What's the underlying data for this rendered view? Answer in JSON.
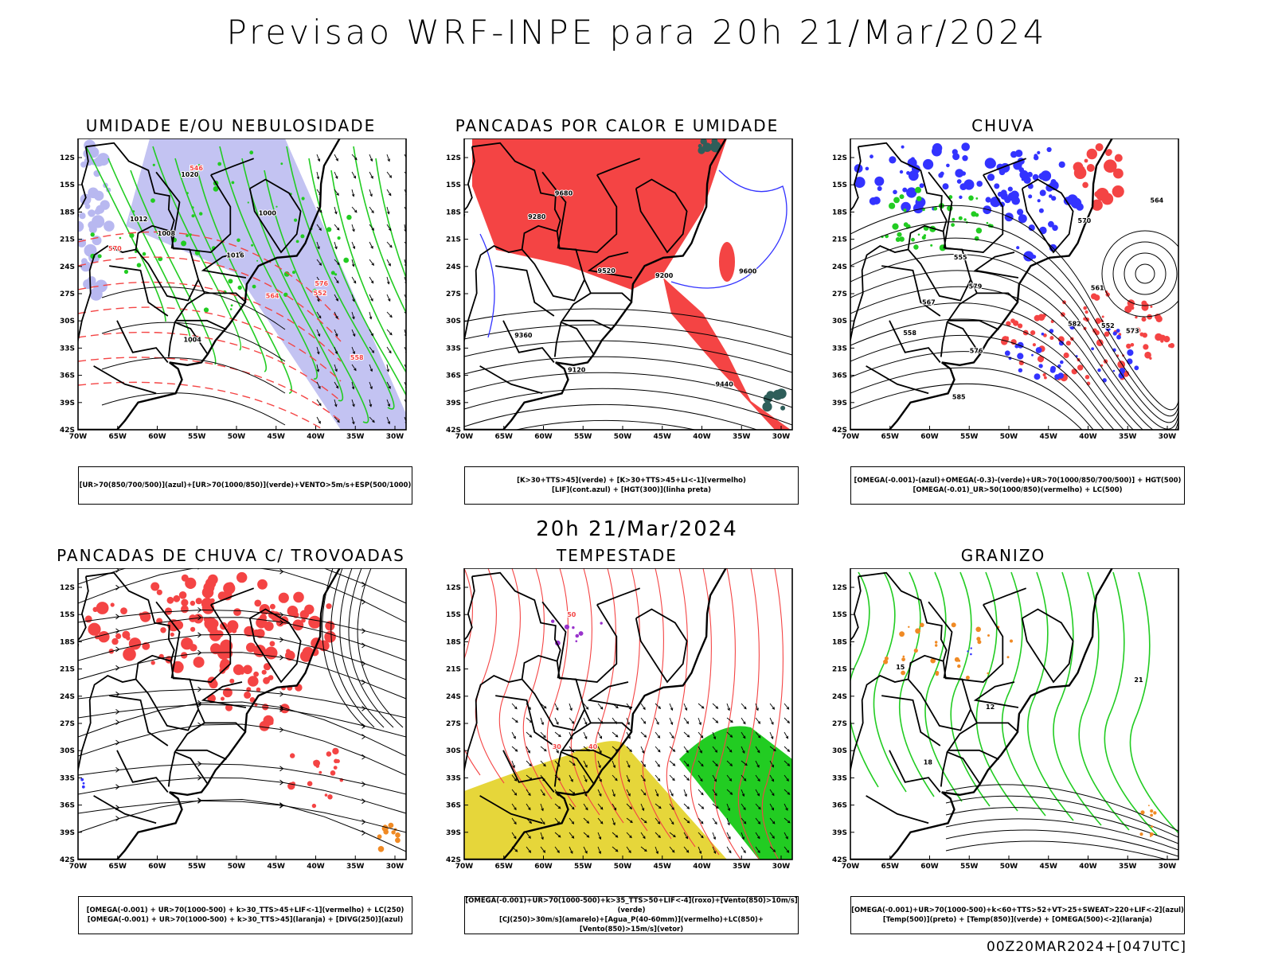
{
  "main_title": "Previsao WRF-INPE  para 20h 21/Mar/2024",
  "mid_title": "20h 21/Mar/2024",
  "footer": "00Z20MAR2024+[047UTC]",
  "lat_labels": [
    "12S",
    "15S",
    "18S",
    "21S",
    "24S",
    "27S",
    "30S",
    "33S",
    "36S",
    "39S",
    "42S"
  ],
  "lon_labels": [
    "70W",
    "65W",
    "60W",
    "55W",
    "50W",
    "45W",
    "40W",
    "35W",
    "30W"
  ],
  "colors": {
    "blue": "#3333ff",
    "lavender": "#b8b8f0",
    "green": "#22cc22",
    "red": "#f44444",
    "yellow": "#e6d63a",
    "orange": "#f08a24",
    "darkteal": "#2e5e5a",
    "purple": "#9933cc"
  },
  "panels": [
    {
      "title": "UMIDADE E/OU NEBULOSIDADE",
      "legend": [
        "[UR>70(850/700/500)](azul)+[UR>70(1000/850)](verde)+VENTO>5m/s+ESP(500/1000)"
      ],
      "contour_labels": [
        "1008",
        "1012",
        "1016",
        "1020",
        "1004",
        "1000",
        "570",
        "564",
        "558",
        "552",
        "546",
        "576"
      ]
    },
    {
      "title": "PANCADAS POR CALOR E UMIDADE",
      "legend": [
        "[K>30+TTS>45](verde) + [K>30+TTS>45+LI<-1](vermelho)",
        "[LIF](cont.azul) + [HGT(300)](linha preta)"
      ],
      "contour_labels": [
        "9680",
        "9600",
        "9520",
        "9440",
        "9360",
        "9280",
        "9200",
        "9120"
      ]
    },
    {
      "title": "CHUVA",
      "legend": [
        "[OMEGA(-0.001)-(azul)+OMEGA(-0.3)-(verde)+UR>70(1000/850/700/500)] + HGT(500)",
        "[OMEGA(-0.01)_UR>50(1000/850)(vermelho) + LC(500)"
      ],
      "contour_labels": [
        "585",
        "582",
        "579",
        "576",
        "573",
        "570",
        "567",
        "564",
        "561",
        "558",
        "555",
        "552"
      ]
    },
    {
      "title": "PANCADAS DE CHUVA C/ TROVOADAS",
      "legend": [
        "[OMEGA(-0.001) + UR>70(1000-500) + k>30_TTS>45+LIF<-1](vermelho) + LC(250)",
        "[OMEGA(-0.001) + UR>70(1000-500) + k>30_TTS>45](laranja) + [DIVG(250)](azul)"
      ],
      "contour_labels": []
    },
    {
      "title": "TEMPESTADE",
      "legend": [
        "[OMEGA(-0.001)+UR>70(1000-500)+k>35_TTS>50+LIF<-4](roxo)+[Vento(850)>10m/s](verde)",
        "[CJ(250)>30m/s](amarelo)+[Agua_P(40-60mm)](vermelho)+LC(850)+[Vento(850)>15m/s](vetor)"
      ],
      "contour_labels": [
        "40",
        "50",
        "30"
      ]
    },
    {
      "title": "GRANIZO",
      "legend": [
        "[OMEGA(-0.001)+UR>70(1000-500)+k<60+TTS>52+VT>25+SWEAT>220+LIF<-2](azul)",
        "[Temp(500)](preto) + [Temp(850)](verde) + [OMEGA(500)<-2](laranja)"
      ],
      "contour_labels": [
        "12",
        "15",
        "18",
        "21"
      ]
    }
  ]
}
